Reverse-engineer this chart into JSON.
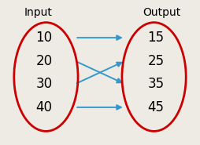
{
  "title_left": "Input",
  "title_right": "Output",
  "inputs": [
    10,
    20,
    30,
    40
  ],
  "outputs": [
    15,
    25,
    35,
    45
  ],
  "arrows": [
    [
      0,
      0
    ],
    [
      1,
      2
    ],
    [
      2,
      1
    ],
    [
      3,
      3
    ]
  ],
  "bg_color": "#eeebe4",
  "ellipse_color": "#cc0000",
  "arrow_color": "#3399cc",
  "text_color": "#000000",
  "title_fontsize": 10,
  "label_fontsize": 12
}
